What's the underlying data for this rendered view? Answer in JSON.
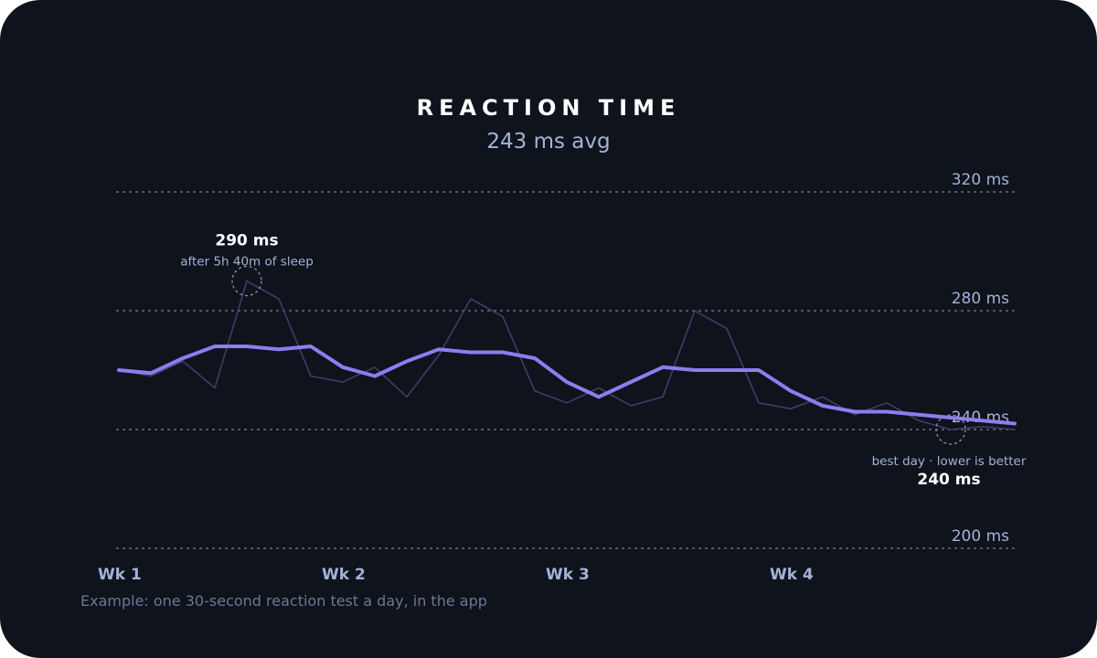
{
  "header": {
    "title": "REACTION TIME",
    "subtitle": "243 ms avg"
  },
  "footnote": "Example: one 30-second reaction test a day, in the app",
  "colors": {
    "background": "#0f131c",
    "accent": "#8f7cf0",
    "daily_line": "#3f3d67",
    "grid": "#59627a",
    "label": "#a3b3d6"
  },
  "chart_data": {
    "type": "line",
    "title": "REACTION TIME",
    "subtitle": "243 ms avg",
    "ylim": [
      200,
      320
    ],
    "yticks": [
      320,
      280,
      240,
      200
    ],
    "ytick_labels": [
      "320 ms",
      "280 ms",
      "240 ms",
      "200 ms"
    ],
    "xticks": [
      1,
      8,
      15,
      22
    ],
    "xtick_labels": [
      "Wk 1",
      "Wk 2",
      "Wk 3",
      "Wk 4"
    ],
    "grid": true,
    "x": [
      1,
      2,
      3,
      4,
      5,
      6,
      7,
      8,
      9,
      10,
      11,
      12,
      13,
      14,
      15,
      16,
      17,
      18,
      19,
      20,
      21,
      22,
      23,
      24,
      25,
      26,
      27,
      28,
      29
    ],
    "series": [
      {
        "role": "daily",
        "values": [
          260,
          258,
          263,
          254,
          290,
          284,
          258,
          256,
          261,
          251,
          265,
          284,
          278,
          253,
          249,
          254,
          248,
          251,
          280,
          274,
          249,
          247,
          251,
          245,
          249,
          243,
          240,
          241,
          240
        ]
      },
      {
        "role": "rolling-average",
        "values": [
          260,
          259,
          264,
          268,
          268,
          267,
          268,
          261,
          258,
          263,
          267,
          266,
          266,
          264,
          256,
          251,
          256,
          261,
          260,
          260,
          260,
          253,
          248,
          246,
          246,
          245,
          244,
          243,
          242
        ]
      }
    ],
    "annotations": [
      {
        "value": "290 ms",
        "note": "after 5h 40m of sleep",
        "x": 5,
        "y": 290
      },
      {
        "value": "240 ms",
        "note": "best day · lower is better",
        "x": 27,
        "y": 240
      }
    ]
  }
}
